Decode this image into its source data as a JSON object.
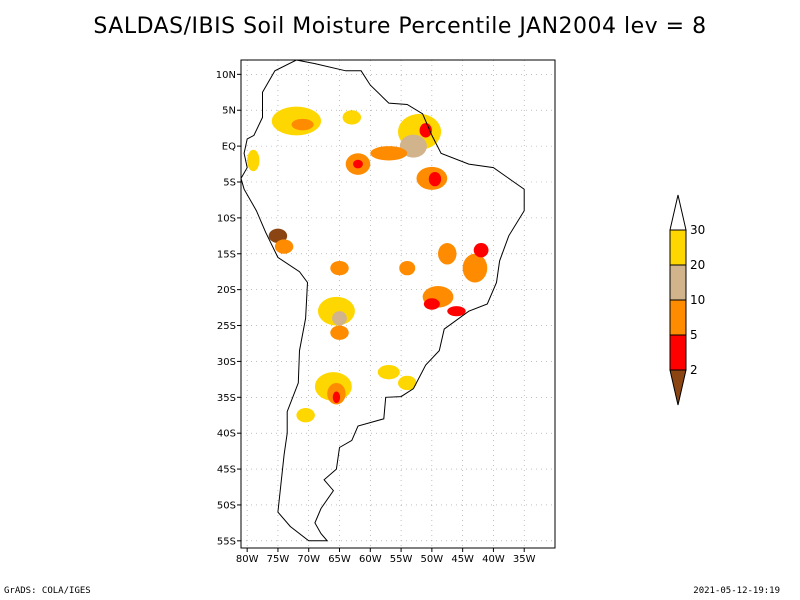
{
  "title": "SALDAS/IBIS Soil Moisture Percentile JAN2004 lev = 8",
  "footer": {
    "left": "GrADS: COLA/IGES",
    "right": "2021-05-12-19:19"
  },
  "colors": {
    "brown": "#8b4513",
    "red": "#ff0000",
    "orange": "#ff8c00",
    "tan": "#d2b48c",
    "gold": "#ffd700",
    "white": "#ffffff"
  },
  "map": {
    "lon_range": [
      -81,
      -30
    ],
    "lat_range": [
      -56,
      12
    ],
    "lon_ticks": [
      {
        "value": -80,
        "label": "80W"
      },
      {
        "value": -75,
        "label": "75W"
      },
      {
        "value": -70,
        "label": "70W"
      },
      {
        "value": -65,
        "label": "65W"
      },
      {
        "value": -60,
        "label": "60W"
      },
      {
        "value": -55,
        "label": "55W"
      },
      {
        "value": -50,
        "label": "50W"
      },
      {
        "value": -45,
        "label": "45W"
      },
      {
        "value": -40,
        "label": "40W"
      },
      {
        "value": -35,
        "label": "35W"
      }
    ],
    "lat_ticks": [
      {
        "value": 10,
        "label": "10N"
      },
      {
        "value": 5,
        "label": "5N"
      },
      {
        "value": 0,
        "label": "EQ"
      },
      {
        "value": -5,
        "label": "5S"
      },
      {
        "value": -10,
        "label": "10S"
      },
      {
        "value": -15,
        "label": "15S"
      },
      {
        "value": -20,
        "label": "20S"
      },
      {
        "value": -25,
        "label": "25S"
      },
      {
        "value": -30,
        "label": "30S"
      },
      {
        "value": -35,
        "label": "35S"
      },
      {
        "value": -40,
        "label": "40S"
      },
      {
        "value": -45,
        "label": "45S"
      },
      {
        "value": -50,
        "label": "50S"
      },
      {
        "value": -55,
        "label": "55S"
      }
    ],
    "coastline": [
      [
        -77.5,
        7.5
      ],
      [
        -75.5,
        10.5
      ],
      [
        -72,
        12
      ],
      [
        -69,
        11.5
      ],
      [
        -64,
        10.5
      ],
      [
        -61.5,
        10.5
      ],
      [
        -60,
        8.5
      ],
      [
        -57,
        6
      ],
      [
        -54,
        5.8
      ],
      [
        -51.5,
        4.5
      ],
      [
        -50,
        1.5
      ],
      [
        -48.5,
        -1
      ],
      [
        -44,
        -2.5
      ],
      [
        -40,
        -3
      ],
      [
        -37,
        -4.8
      ],
      [
        -35,
        -6
      ],
      [
        -35,
        -9
      ],
      [
        -37.5,
        -12.5
      ],
      [
        -39,
        -16
      ],
      [
        -39.5,
        -19
      ],
      [
        -41,
        -22
      ],
      [
        -44,
        -23
      ],
      [
        -48,
        -25.5
      ],
      [
        -48.8,
        -28.5
      ],
      [
        -51,
        -30.5
      ],
      [
        -53,
        -33.8
      ],
      [
        -55,
        -34.9
      ],
      [
        -57.5,
        -35
      ],
      [
        -57.8,
        -38
      ],
      [
        -62,
        -39
      ],
      [
        -63,
        -41
      ],
      [
        -65,
        -42
      ],
      [
        -65.5,
        -45
      ],
      [
        -67.5,
        -46.5
      ],
      [
        -66,
        -48
      ],
      [
        -68,
        -50.5
      ],
      [
        -69,
        -52.5
      ],
      [
        -68,
        -54
      ],
      [
        -67,
        -55
      ],
      [
        -70,
        -55
      ],
      [
        -73,
        -53
      ],
      [
        -75,
        -51
      ],
      [
        -74.5,
        -47
      ],
      [
        -74,
        -43
      ],
      [
        -73.5,
        -40
      ],
      [
        -73.5,
        -37
      ],
      [
        -71.7,
        -33
      ],
      [
        -71.5,
        -28.5
      ],
      [
        -70.5,
        -24
      ],
      [
        -70.2,
        -19
      ],
      [
        -71.5,
        -17.5
      ],
      [
        -75,
        -15.5
      ],
      [
        -77,
        -12
      ],
      [
        -78.5,
        -9
      ],
      [
        -80.5,
        -6
      ],
      [
        -81,
        -4.5
      ],
      [
        -80,
        -3
      ],
      [
        -80.5,
        -1
      ],
      [
        -80,
        1
      ],
      [
        -78.9,
        1.5
      ],
      [
        -77.5,
        4
      ],
      [
        -77.5,
        7.5
      ]
    ],
    "anomalies": [
      {
        "lon": -72,
        "lat": 3.5,
        "rx": 4,
        "ry": 2,
        "cls": "gold"
      },
      {
        "lon": -71,
        "lat": 3,
        "rx": 1.8,
        "ry": 0.8,
        "cls": "orange"
      },
      {
        "lon": -63,
        "lat": 4,
        "rx": 1.5,
        "ry": 1,
        "cls": "gold"
      },
      {
        "lon": -52,
        "lat": 2,
        "rx": 3.5,
        "ry": 2.5,
        "cls": "gold"
      },
      {
        "lon": -53,
        "lat": 0,
        "rx": 2.2,
        "ry": 1.6,
        "cls": "tan"
      },
      {
        "lon": -51,
        "lat": 2.2,
        "rx": 1,
        "ry": 1,
        "cls": "red"
      },
      {
        "lon": -57,
        "lat": -1,
        "rx": 3,
        "ry": 1,
        "cls": "orange"
      },
      {
        "lon": -62,
        "lat": -2.5,
        "rx": 2,
        "ry": 1.5,
        "cls": "orange"
      },
      {
        "lon": -62,
        "lat": -2.5,
        "rx": 0.8,
        "ry": 0.6,
        "cls": "red"
      },
      {
        "lon": -50,
        "lat": -4.5,
        "rx": 2.5,
        "ry": 1.6,
        "cls": "orange"
      },
      {
        "lon": -49.5,
        "lat": -4.6,
        "rx": 1,
        "ry": 1,
        "cls": "red"
      },
      {
        "lon": -75,
        "lat": -12.5,
        "rx": 1.5,
        "ry": 1,
        "cls": "brown"
      },
      {
        "lon": -74,
        "lat": -14,
        "rx": 1.5,
        "ry": 1,
        "cls": "orange"
      },
      {
        "lon": -65,
        "lat": -17,
        "rx": 1.5,
        "ry": 1,
        "cls": "orange"
      },
      {
        "lon": -54,
        "lat": -17,
        "rx": 1.3,
        "ry": 1,
        "cls": "orange"
      },
      {
        "lon": -47.5,
        "lat": -15,
        "rx": 1.5,
        "ry": 1.5,
        "cls": "orange"
      },
      {
        "lon": -43,
        "lat": -17,
        "rx": 2,
        "ry": 2,
        "cls": "orange"
      },
      {
        "lon": -42,
        "lat": -14.5,
        "rx": 1.2,
        "ry": 1,
        "cls": "red"
      },
      {
        "lon": -49,
        "lat": -21,
        "rx": 2.5,
        "ry": 1.5,
        "cls": "orange"
      },
      {
        "lon": -50,
        "lat": -22,
        "rx": 1.3,
        "ry": 0.8,
        "cls": "red"
      },
      {
        "lon": -46,
        "lat": -23,
        "rx": 1.5,
        "ry": 0.7,
        "cls": "red"
      },
      {
        "lon": -65.5,
        "lat": -23,
        "rx": 3,
        "ry": 2,
        "cls": "gold"
      },
      {
        "lon": -65,
        "lat": -24,
        "rx": 1.2,
        "ry": 1,
        "cls": "tan"
      },
      {
        "lon": -65,
        "lat": -26,
        "rx": 1.5,
        "ry": 1,
        "cls": "orange"
      },
      {
        "lon": -57,
        "lat": -31.5,
        "rx": 1.8,
        "ry": 1,
        "cls": "gold"
      },
      {
        "lon": -54,
        "lat": -33,
        "rx": 1.5,
        "ry": 1,
        "cls": "gold"
      },
      {
        "lon": -66,
        "lat": -33.5,
        "rx": 3,
        "ry": 2,
        "cls": "gold"
      },
      {
        "lon": -65.5,
        "lat": -34.5,
        "rx": 1.5,
        "ry": 1.5,
        "cls": "orange"
      },
      {
        "lon": -65.5,
        "lat": -35,
        "rx": 0.6,
        "ry": 0.8,
        "cls": "red"
      },
      {
        "lon": -70.5,
        "lat": -37.5,
        "rx": 1.5,
        "ry": 1,
        "cls": "gold"
      },
      {
        "lon": -79,
        "lat": -2,
        "rx": 1,
        "ry": 1.5,
        "cls": "gold"
      }
    ]
  },
  "legend": {
    "levels": [
      {
        "label": "30",
        "cls": "gold"
      },
      {
        "label": "20",
        "cls": "tan"
      },
      {
        "label": "10",
        "cls": "orange"
      },
      {
        "label": "5",
        "cls": "red"
      },
      {
        "label": "2",
        "cls": "brown"
      }
    ]
  }
}
